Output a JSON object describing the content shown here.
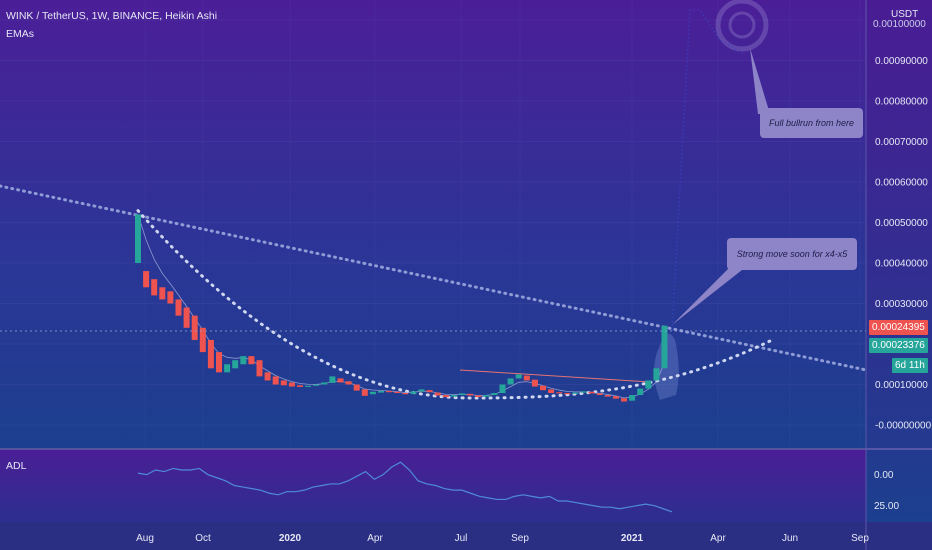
{
  "header": {
    "symbol_line": "WINK / TetherUS, 1W, BINANCE, Heikin Ashi",
    "indicator": "EMAs"
  },
  "sub_pane": {
    "label": "ADL",
    "ticks": [
      "0.00",
      "25.00"
    ]
  },
  "price_axis": {
    "unit": "USDT",
    "ticks": [
      "0.00090000",
      "0.00080000",
      "0.00070000",
      "0.00060000",
      "0.00050000",
      "0.00040000",
      "0.00030000",
      "0.00010000",
      "-0.00000000"
    ],
    "partial_top_tick": "0.00100000"
  },
  "badges": {
    "last_price": "0.00024395",
    "ema_price": "0.00023376",
    "countdown": "6d 11h"
  },
  "annotations": {
    "full_bullrun": "Full bullrun from here",
    "strong_move": "Strong move soon for x4-x5"
  },
  "time_axis": [
    "Aug",
    "Oct",
    "2020",
    "Apr",
    "Jul",
    "Sep",
    "2021",
    "Apr",
    "Jun",
    "Sep"
  ],
  "colors": {
    "up": "#26a69a",
    "down": "#ef5350",
    "bg_top": "#4a1e96",
    "bg_bottom": "#1b3c8a",
    "dotted": "#cfd6ef",
    "ema": "#e57373",
    "callout": "#8e84c8"
  },
  "chart_data": {
    "type": "candlestick",
    "ylim": [
      0,
      0.001
    ],
    "candles_heikin_ashi": [
      {
        "o": 0.0004,
        "c": 0.00052,
        "dir": "up"
      },
      {
        "o": 0.00038,
        "c": 0.00034,
        "dir": "down"
      },
      {
        "o": 0.00036,
        "c": 0.00032,
        "dir": "down"
      },
      {
        "o": 0.00034,
        "c": 0.00031,
        "dir": "down"
      },
      {
        "o": 0.00033,
        "c": 0.0003,
        "dir": "down"
      },
      {
        "o": 0.00031,
        "c": 0.00027,
        "dir": "down"
      },
      {
        "o": 0.00029,
        "c": 0.00024,
        "dir": "down"
      },
      {
        "o": 0.00027,
        "c": 0.00021,
        "dir": "down"
      },
      {
        "o": 0.00024,
        "c": 0.00018,
        "dir": "down"
      },
      {
        "o": 0.00021,
        "c": 0.00014,
        "dir": "down"
      },
      {
        "o": 0.00018,
        "c": 0.00013,
        "dir": "down"
      },
      {
        "o": 0.00013,
        "c": 0.00015,
        "dir": "up"
      },
      {
        "o": 0.00014,
        "c": 0.00016,
        "dir": "up"
      },
      {
        "o": 0.00015,
        "c": 0.00017,
        "dir": "up"
      },
      {
        "o": 0.00017,
        "c": 0.00015,
        "dir": "down"
      },
      {
        "o": 0.00016,
        "c": 0.00012,
        "dir": "down"
      },
      {
        "o": 0.00013,
        "c": 0.00011,
        "dir": "down"
      },
      {
        "o": 0.00012,
        "c": 0.0001,
        "dir": "down"
      },
      {
        "o": 0.00011,
        "c": 9.8e-05,
        "dir": "down"
      },
      {
        "o": 0.000105,
        "c": 9.5e-05,
        "dir": "down"
      },
      {
        "o": 9.8e-05,
        "c": 9.4e-05,
        "dir": "down"
      },
      {
        "o": 9.4e-05,
        "c": 9.7e-05,
        "dir": "up"
      },
      {
        "o": 9.7e-05,
        "c": 0.0001,
        "dir": "up"
      },
      {
        "o": 0.0001,
        "c": 0.000105,
        "dir": "up"
      },
      {
        "o": 0.000104,
        "c": 0.00012,
        "dir": "up"
      },
      {
        "o": 0.000115,
        "c": 0.000105,
        "dir": "down"
      },
      {
        "o": 0.000108,
        "c": 0.0001,
        "dir": "down"
      },
      {
        "o": 0.0001,
        "c": 8.5e-05,
        "dir": "down"
      },
      {
        "o": 8.8e-05,
        "c": 7.2e-05,
        "dir": "down"
      },
      {
        "o": 7.6e-05,
        "c": 8.2e-05,
        "dir": "up"
      },
      {
        "o": 8e-05,
        "c": 8.4e-05,
        "dir": "up"
      },
      {
        "o": 8.4e-05,
        "c": 8.1e-05,
        "dir": "down"
      },
      {
        "o": 8.2e-05,
        "c": 7.9e-05,
        "dir": "down"
      },
      {
        "o": 7.9e-05,
        "c": 7.6e-05,
        "dir": "down"
      },
      {
        "o": 7.7e-05,
        "c": 8.3e-05,
        "dir": "up"
      },
      {
        "o": 8.3e-05,
        "c": 8.8e-05,
        "dir": "up"
      },
      {
        "o": 8.6e-05,
        "c": 8.1e-05,
        "dir": "down"
      },
      {
        "o": 8e-05,
        "c": 7.3e-05,
        "dir": "down"
      },
      {
        "o": 7.4e-05,
        "c": 6.9e-05,
        "dir": "down"
      },
      {
        "o": 7e-05,
        "c": 7.4e-05,
        "dir": "up"
      },
      {
        "o": 7.4e-05,
        "c": 7.8e-05,
        "dir": "up"
      },
      {
        "o": 7.7e-05,
        "c": 7.3e-05,
        "dir": "down"
      },
      {
        "o": 7.3e-05,
        "c": 6.9e-05,
        "dir": "down"
      },
      {
        "o": 7e-05,
        "c": 7.4e-05,
        "dir": "up"
      },
      {
        "o": 7.4e-05,
        "c": 7.9e-05,
        "dir": "up"
      },
      {
        "o": 7.9e-05,
        "c": 0.0001,
        "dir": "up"
      },
      {
        "o": 0.0001,
        "c": 0.000115,
        "dir": "up"
      },
      {
        "o": 0.000115,
        "c": 0.000125,
        "dir": "up"
      },
      {
        "o": 0.000122,
        "c": 0.00011,
        "dir": "down"
      },
      {
        "o": 0.000112,
        "c": 9.5e-05,
        "dir": "down"
      },
      {
        "o": 9.7e-05,
        "c": 8.6e-05,
        "dir": "down"
      },
      {
        "o": 8.8e-05,
        "c": 7.9e-05,
        "dir": "down"
      },
      {
        "o": 8.1e-05,
        "c": 7.8e-05,
        "dir": "down"
      },
      {
        "o": 7.9e-05,
        "c": 7.6e-05,
        "dir": "down"
      },
      {
        "o": 7.7e-05,
        "c": 8e-05,
        "dir": "up"
      },
      {
        "o": 8e-05,
        "c": 8.3e-05,
        "dir": "up"
      },
      {
        "o": 8.2e-05,
        "c": 7.8e-05,
        "dir": "down"
      },
      {
        "o": 7.8e-05,
        "c": 7.4e-05,
        "dir": "down"
      },
      {
        "o": 7.4e-05,
        "c": 7e-05,
        "dir": "down"
      },
      {
        "o": 7.1e-05,
        "c": 6.5e-05,
        "dir": "down"
      },
      {
        "o": 6.6e-05,
        "c": 5.8e-05,
        "dir": "down"
      },
      {
        "o": 6e-05,
        "c": 7.4e-05,
        "dir": "up"
      },
      {
        "o": 7.4e-05,
        "c": 9e-05,
        "dir": "up"
      },
      {
        "o": 9e-05,
        "c": 0.00011,
        "dir": "up"
      },
      {
        "o": 0.00011,
        "c": 0.00014,
        "dir": "up"
      },
      {
        "o": 0.00014,
        "c": 0.000245,
        "dir": "up"
      }
    ],
    "adl": [
      2,
      3,
      0,
      1,
      -1,
      0,
      0,
      -1,
      3,
      5,
      7,
      10,
      11,
      12,
      13,
      15,
      16,
      14,
      14,
      13,
      11,
      10,
      9,
      9,
      7,
      4,
      1,
      6,
      3,
      -2,
      -5,
      0,
      7,
      9,
      10,
      12,
      13,
      13,
      15,
      17,
      18,
      19,
      19,
      17,
      16,
      17,
      18,
      17,
      20,
      20,
      21,
      22,
      23,
      24,
      24,
      25,
      24,
      23,
      22,
      23,
      25,
      27
    ]
  }
}
